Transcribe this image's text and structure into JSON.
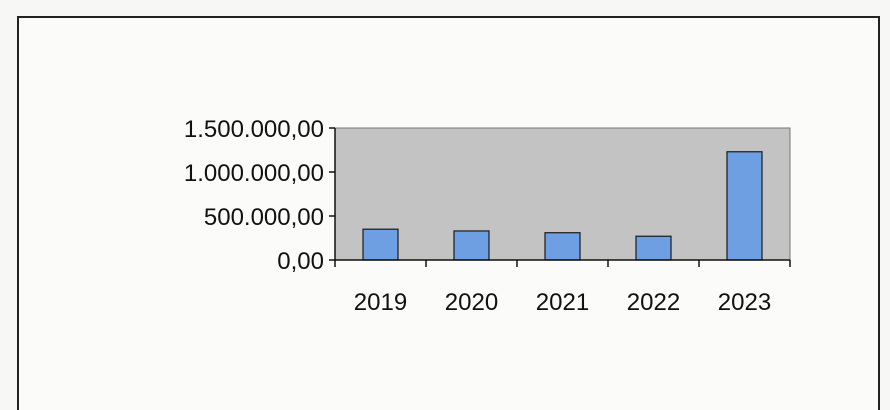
{
  "chart_data": {
    "type": "bar",
    "categories": [
      "2019",
      "2020",
      "2021",
      "2022",
      "2023"
    ],
    "values": [
      350000,
      330000,
      310000,
      270000,
      1230000
    ],
    "y_tick_labels": [
      "0,00",
      "500.000,00",
      "1.000.000,00",
      "1.500.000,00"
    ],
    "y_tick_values": [
      0,
      500000,
      1000000,
      1500000
    ],
    "ylim": [
      0,
      1500000
    ],
    "title": "",
    "xlabel": "",
    "ylabel": "",
    "grid": false,
    "legend": "none",
    "colors": {
      "bar": "#6f9fe3",
      "bar_stroke": "#1a1a1a",
      "plot_area": "#c3c3c3",
      "axis": "#111111"
    }
  }
}
